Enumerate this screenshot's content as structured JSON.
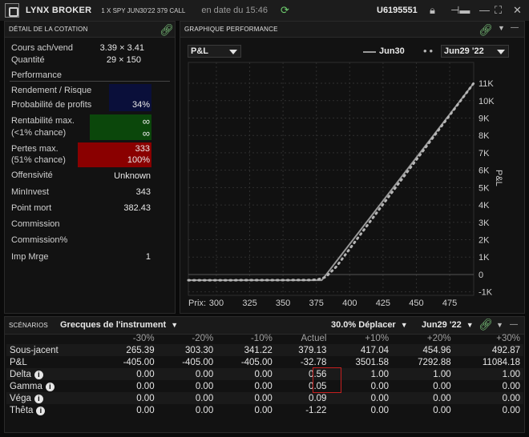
{
  "titlebar": {
    "brand": "LYNX BROKER",
    "instrument": "1 X SPY JUN30'22 379 CALL",
    "date": "en date du 15:46",
    "account": "U6195551"
  },
  "details": {
    "title": "DÉTAIL DE LA COTATION",
    "rows": {
      "cours_label": "Cours ach/vend",
      "cours_value": "3.39 × 3.41",
      "qty_label": "Quantité",
      "qty_value": "29 × 150",
      "perf_label": "Performance",
      "rr_label": "Rendement / Risque",
      "prob_label": "Probabilité de profits",
      "prob_value": "34%",
      "rent_label1": "Rentabilité max.",
      "rent_label2": "(<1% chance)",
      "rent_value1": "∞",
      "rent_value2": "∞",
      "loss_label1": "Pertes max.",
      "loss_label2": "(51% chance)",
      "loss_value1": "333",
      "loss_value2": "100%",
      "offens_label": "Offensivité",
      "offens_value": "Unknown",
      "mininv_label": "MinInvest",
      "mininv_value": "343",
      "pointmort_label": "Point mort",
      "pointmort_value": "382.43",
      "comm_label": "Commission",
      "commpct_label": "Commission%",
      "impmrge_label": "Imp Mrge",
      "impmrge_value": "1"
    }
  },
  "chart_panel": {
    "title": "GRAPHIQUE PERFORMANCE",
    "metric_select": "P&L",
    "legend_solid": "Jun30",
    "legend_dotted_select": "Jun29 '22",
    "y_axis_label": "P&L",
    "x_prefix": "Prix:"
  },
  "chart_data": {
    "type": "line",
    "x_ticks": [
      300,
      325,
      350,
      375,
      400,
      425,
      450,
      475
    ],
    "y_ticks": [
      -1000,
      0,
      1000,
      2000,
      3000,
      4000,
      5000,
      6000,
      7000,
      8000,
      9000,
      10000,
      11000
    ],
    "y_tick_labels": [
      "-1K",
      "0",
      "1K",
      "2K",
      "3K",
      "4K",
      "5K",
      "6K",
      "7K",
      "8K",
      "9K",
      "10K",
      "11K"
    ],
    "xlim": [
      279,
      493
    ],
    "ylim": [
      -1200,
      12200
    ],
    "series": [
      {
        "name": "Jun30",
        "style": "solid",
        "color": "#9a9a9a",
        "x": [
          279,
          379,
          382.43,
          493
        ],
        "y": [
          -333,
          -333,
          0,
          11006
        ]
      },
      {
        "name": "Jun29 '22",
        "style": "dotted",
        "color": "#b5b5b5",
        "x": [
          279,
          370,
          376,
          382,
          390,
          493
        ],
        "y": [
          -333,
          -320,
          -290,
          -150,
          450,
          11006
        ]
      }
    ]
  },
  "scenarios": {
    "title": "SCÉNARIOS",
    "greeks_select": "Grecques de l'instrument",
    "shift_select": "30.0% Déplacer",
    "date_select": "Jun29 '22",
    "columns": [
      "-30%",
      "-20%",
      "-10%",
      "Actuel",
      "+10%",
      "+20%",
      "+30%"
    ],
    "rows": [
      {
        "label": "Sous-jacent",
        "info": false,
        "values": [
          "265.39",
          "303.30",
          "341.22",
          "379.13",
          "417.04",
          "454.96",
          "492.87"
        ]
      },
      {
        "label": "P&L",
        "info": false,
        "values": [
          "-405.00",
          "-405.00",
          "-405.00",
          "-32.78",
          "3501.58",
          "7292.88",
          "11084.18"
        ]
      },
      {
        "label": "Delta",
        "info": true,
        "values": [
          "0.00",
          "0.00",
          "0.00",
          "0.56",
          "1.00",
          "1.00",
          "1.00"
        ]
      },
      {
        "label": "Gamma",
        "info": true,
        "values": [
          "0.00",
          "0.00",
          "0.00",
          "0.05",
          "0.00",
          "0.00",
          "0.00"
        ]
      },
      {
        "label": "Véga",
        "info": true,
        "values": [
          "0.00",
          "0.00",
          "0.00",
          "0.09",
          "0.00",
          "0.00",
          "0.00"
        ]
      },
      {
        "label": "Thêta",
        "info": true,
        "values": [
          "0.00",
          "0.00",
          "0.00",
          "-1.22",
          "0.00",
          "0.00",
          "0.00"
        ]
      }
    ]
  }
}
